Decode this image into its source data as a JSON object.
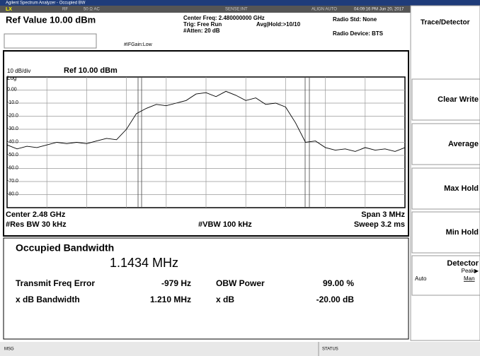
{
  "header": {
    "window_title": "Agilent Spectrum Analyzer - Occupied BW",
    "status": [
      "LX",
      "RF",
      "50 Ω  AC",
      "SENSE:INT",
      "ALIGN AUTO",
      "04:09:16 PM Jun 20, 2017"
    ],
    "ref_value": "Ref Value 10.00 dBm",
    "center_freq": "Center Freq: 2.480000000 GHz",
    "trig": "Trig: Free Run",
    "avg_hold": "Avg|Hold:>10/10",
    "atten": "#Atten: 20 dB",
    "if_gain": "#IFGain:Low",
    "radio_std": "Radio Std: None",
    "radio_device": "Radio Device: BTS"
  },
  "chart_data": {
    "type": "line",
    "scale": "10 dB/div",
    "ref_label": "Ref 10.00 dBm",
    "log": "Log",
    "color": "#000000",
    "values": [
      -42,
      -45,
      -43,
      -44,
      -42,
      -40,
      -41,
      -40,
      -41,
      -39,
      -37,
      -38,
      -30,
      -18,
      -14,
      -11,
      -12,
      -10,
      -8,
      -3,
      -2,
      -5,
      -1,
      -4,
      -8,
      -6,
      -11,
      -10,
      -13,
      -25,
      -40,
      -39,
      -44,
      -46,
      -45,
      -47,
      -44,
      -46,
      -45,
      -47,
      -44
    ],
    "ylim": [
      -90,
      10
    ],
    "yticks": [
      {
        "value": 0,
        "label": "0.00"
      },
      {
        "value": -10,
        "label": "-10.0"
      },
      {
        "value": -20,
        "label": "-20.0"
      },
      {
        "value": -30,
        "label": "-30.0"
      },
      {
        "value": -40,
        "label": "-40.0"
      },
      {
        "value": -50,
        "label": "-50.0"
      },
      {
        "value": -60,
        "label": "-60.0"
      },
      {
        "value": -70,
        "label": "-70.0"
      },
      {
        "value": -80,
        "label": "-80.0"
      }
    ],
    "grid": true,
    "center": "Center 2.48 GHz",
    "span": "Span 3 MHz",
    "res_bw": "#Res BW 30 kHz",
    "vbw": "#VBW 100 kHz",
    "sweep": "Sweep 3.2 ms"
  },
  "results": {
    "title": "Occupied Bandwidth",
    "bandwidth": "1.1434 MHz",
    "rows": [
      [
        "Transmit Freq Error",
        "-979 Hz",
        "OBW Power",
        "99.00 %"
      ],
      [
        "x dB Bandwidth",
        "1.210 MHz",
        "x dB",
        "-20.00 dB"
      ]
    ]
  },
  "menu": {
    "title": "Trace/Detector",
    "buttons": [
      "Clear Write",
      "Average",
      "Max Hold",
      "Min Hold"
    ],
    "detector": "Detector",
    "detector_value": "Peak▶",
    "auto": "Auto",
    "man": "Man"
  },
  "footer": {
    "msg": "MSG",
    "status": "STATUS"
  }
}
